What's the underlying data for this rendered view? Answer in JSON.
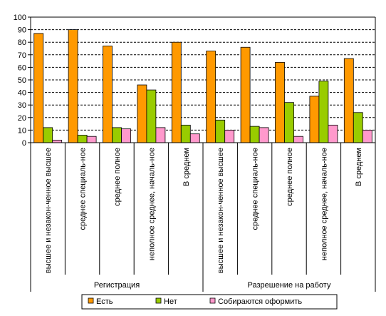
{
  "chart_data": {
    "type": "bar",
    "groups": [
      "Регистрация",
      "Разрешение на работу"
    ],
    "categories": [
      "высшее и незакон-ченное высшее",
      "среднее специаль-ное",
      "среднее  полное",
      "неполное среднее, началь-ное",
      "В среднем",
      "высшее и незакон-ченное высшее",
      "среднее специаль-ное",
      "среднее  полное",
      "неполное среднее, началь-ное",
      "В среднем"
    ],
    "series": [
      {
        "name": "Есть",
        "color": "#FF9900",
        "values": [
          87,
          90,
          77,
          46,
          80,
          73,
          76,
          64,
          37,
          67
        ]
      },
      {
        "name": "Нет",
        "color": "#99CC00",
        "values": [
          12,
          6,
          12,
          42,
          14,
          18,
          13,
          32,
          49,
          24
        ]
      },
      {
        "name": "Собираются оформить",
        "color": "#FF99CC",
        "values": [
          2,
          5,
          11,
          12,
          7,
          10,
          12,
          5,
          14,
          10
        ]
      }
    ],
    "ylim": [
      0,
      100
    ],
    "yticks": [
      "0",
      "10",
      "20",
      "30",
      "40",
      "50",
      "60",
      "70",
      "80",
      "90",
      "100"
    ],
    "grid": true,
    "legend": "bottom"
  }
}
